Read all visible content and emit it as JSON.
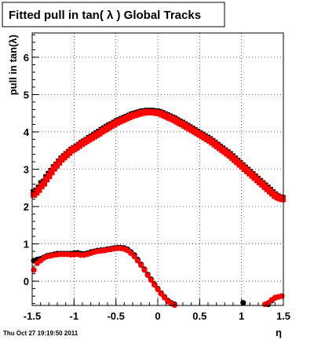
{
  "chart_data": {
    "type": "scatter",
    "title": "Fitted pull in tan( λ )  Global Tracks",
    "xlabel": "η",
    "ylabel": "pull in tan(λ)",
    "xlim": [
      -1.5,
      1.5
    ],
    "ylim": [
      -0.65,
      6.65
    ],
    "xticks": [
      -1.5,
      -1,
      -0.5,
      0,
      0.5,
      1,
      1.5
    ],
    "xtick_labels": [
      "-1.5",
      "-1",
      "-0.5",
      "0",
      "0.5",
      "1",
      "1.5"
    ],
    "yticks": [
      0,
      1,
      2,
      3,
      4,
      5,
      6
    ],
    "ytick_labels": [
      "0",
      "1",
      "2",
      "3",
      "4",
      "5",
      "6"
    ],
    "grid": true,
    "footer": "Thu Oct 27 19:19:50 2011",
    "series": [
      {
        "marker": "square",
        "color": "#000000",
        "x": [
          -1.48,
          -1.45,
          -1.42,
          -1.39,
          -1.36,
          -1.33,
          -1.3,
          -1.27,
          -1.24,
          -1.21,
          -1.18,
          -1.15,
          -1.12,
          -1.09,
          -1.06,
          -1.03,
          -1.0,
          -0.97,
          -0.94,
          -0.91,
          -0.88,
          -0.85,
          -0.82,
          -0.79,
          -0.76,
          -0.73,
          -0.7,
          -0.67,
          -0.64,
          -0.61,
          -0.58,
          -0.55,
          -0.52,
          -0.49,
          -0.46,
          -0.43,
          -0.4,
          -0.37,
          -0.34,
          -0.31,
          -0.28,
          -0.25,
          -0.22,
          -0.19,
          -0.16,
          -0.13,
          -0.1,
          -0.07,
          -0.04,
          -0.01,
          0.02,
          0.05,
          0.08,
          0.11,
          0.14,
          0.17,
          0.2,
          0.23,
          0.26,
          0.29,
          0.32,
          0.35,
          0.38,
          0.41,
          0.44,
          0.47,
          0.5,
          0.53,
          0.56,
          0.59,
          0.62,
          0.65,
          0.68,
          0.71,
          0.74,
          0.77,
          0.8,
          0.83,
          0.86,
          0.89,
          0.92,
          0.95,
          0.98,
          1.01,
          1.04,
          1.07,
          1.1,
          1.13,
          1.16,
          1.19,
          1.22,
          1.25,
          1.28,
          1.31,
          1.34,
          1.37,
          1.4,
          1.43,
          1.46,
          1.49
        ],
        "y": [
          2.38,
          2.42,
          2.5,
          2.62,
          2.66,
          2.78,
          2.87,
          2.95,
          3.05,
          3.12,
          3.2,
          3.28,
          3.34,
          3.4,
          3.46,
          3.52,
          3.56,
          3.6,
          3.65,
          3.7,
          3.74,
          3.78,
          3.83,
          3.87,
          3.91,
          3.96,
          4.0,
          4.05,
          4.09,
          4.13,
          4.17,
          4.2,
          4.24,
          4.28,
          4.31,
          4.34,
          4.37,
          4.4,
          4.43,
          4.46,
          4.48,
          4.5,
          4.52,
          4.54,
          4.55,
          4.56,
          4.56,
          4.56,
          4.55,
          4.54,
          4.53,
          4.5,
          4.47,
          4.44,
          4.41,
          4.38,
          4.35,
          4.31,
          4.27,
          4.24,
          4.2,
          4.16,
          4.12,
          4.08,
          4.04,
          4.0,
          3.96,
          3.92,
          3.88,
          3.84,
          3.8,
          3.75,
          3.7,
          3.65,
          3.6,
          3.55,
          3.5,
          3.45,
          3.4,
          3.34,
          3.28,
          3.22,
          3.16,
          3.1,
          3.04,
          2.98,
          2.92,
          2.86,
          2.8,
          2.74,
          2.68,
          2.62,
          2.56,
          2.5,
          2.44,
          2.38,
          2.32,
          2.27,
          2.24,
          2.22
        ]
      },
      {
        "marker": "square",
        "color": "#ff0000",
        "x": [
          -1.48,
          -1.45,
          -1.42,
          -1.39,
          -1.36,
          -1.33,
          -1.3,
          -1.27,
          -1.24,
          -1.21,
          -1.18,
          -1.15,
          -1.12,
          -1.09,
          -1.06,
          -1.03,
          -1.0,
          -0.97,
          -0.94,
          -0.91,
          -0.88,
          -0.85,
          -0.82,
          -0.79,
          -0.76,
          -0.73,
          -0.7,
          -0.67,
          -0.64,
          -0.61,
          -0.58,
          -0.55,
          -0.52,
          -0.49,
          -0.46,
          -0.43,
          -0.4,
          -0.37,
          -0.34,
          -0.31,
          -0.28,
          -0.25,
          -0.22,
          -0.19,
          -0.16,
          -0.13,
          -0.1,
          -0.07,
          -0.04,
          -0.01,
          0.02,
          0.05,
          0.08,
          0.11,
          0.14,
          0.17,
          0.2,
          0.23,
          0.26,
          0.29,
          0.32,
          0.35,
          0.38,
          0.41,
          0.44,
          0.47,
          0.5,
          0.53,
          0.56,
          0.59,
          0.62,
          0.65,
          0.68,
          0.71,
          0.74,
          0.77,
          0.8,
          0.83,
          0.86,
          0.89,
          0.92,
          0.95,
          0.98,
          1.01,
          1.04,
          1.07,
          1.1,
          1.13,
          1.16,
          1.19,
          1.22,
          1.25,
          1.28,
          1.31,
          1.34,
          1.37,
          1.4,
          1.43,
          1.46,
          1.49
        ],
        "y": [
          2.32,
          2.38,
          2.45,
          2.55,
          2.62,
          2.73,
          2.82,
          2.92,
          3.02,
          3.1,
          3.18,
          3.26,
          3.32,
          3.38,
          3.44,
          3.5,
          3.54,
          3.58,
          3.63,
          3.68,
          3.72,
          3.76,
          3.8,
          3.84,
          3.88,
          3.92,
          3.96,
          4.01,
          4.05,
          4.09,
          4.13,
          4.17,
          4.21,
          4.25,
          4.28,
          4.31,
          4.34,
          4.37,
          4.4,
          4.43,
          4.45,
          4.47,
          4.49,
          4.51,
          4.52,
          4.53,
          4.53,
          4.53,
          4.52,
          4.51,
          4.5,
          4.47,
          4.44,
          4.41,
          4.38,
          4.35,
          4.32,
          4.28,
          4.24,
          4.21,
          4.17,
          4.13,
          4.09,
          4.05,
          4.01,
          3.97,
          3.93,
          3.89,
          3.85,
          3.81,
          3.77,
          3.72,
          3.67,
          3.62,
          3.57,
          3.52,
          3.47,
          3.42,
          3.37,
          3.31,
          3.25,
          3.19,
          3.13,
          3.07,
          3.01,
          2.95,
          2.89,
          2.83,
          2.77,
          2.71,
          2.65,
          2.59,
          2.53,
          2.47,
          2.41,
          2.35,
          2.29,
          2.25,
          2.22,
          2.2
        ]
      },
      {
        "marker": "circle",
        "color": "#000000",
        "x": [
          -1.48,
          -1.44,
          -1.4,
          -1.36,
          -1.32,
          -1.28,
          -1.24,
          -1.2,
          -1.16,
          -1.12,
          -1.08,
          -1.04,
          -1.0,
          -0.96,
          -0.92,
          -0.88,
          -0.84,
          -0.8,
          -0.76,
          -0.72,
          -0.68,
          -0.64,
          -0.6,
          -0.56,
          -0.52,
          -0.48,
          -0.44,
          -0.4,
          -0.36,
          -0.32,
          -0.28,
          -0.24,
          -0.2,
          -0.16,
          -0.12,
          -0.08,
          -0.04,
          0.0,
          0.04,
          0.08,
          0.12,
          0.16,
          0.2,
          1.02,
          1.32,
          1.36,
          1.4,
          1.44,
          1.48
        ],
        "y": [
          0.55,
          0.58,
          0.6,
          0.64,
          0.68,
          0.7,
          0.72,
          0.74,
          0.74,
          0.74,
          0.74,
          0.74,
          0.75,
          0.76,
          0.74,
          0.73,
          0.75,
          0.78,
          0.8,
          0.82,
          0.83,
          0.84,
          0.86,
          0.87,
          0.89,
          0.9,
          0.9,
          0.89,
          0.85,
          0.78,
          0.7,
          0.58,
          0.45,
          0.32,
          0.18,
          0.05,
          -0.08,
          -0.2,
          -0.32,
          -0.42,
          -0.52,
          -0.58,
          -0.62,
          -0.58,
          -0.62,
          -0.52,
          -0.45,
          -0.42,
          -0.4
        ]
      },
      {
        "marker": "circle",
        "color": "#ff0000",
        "x": [
          -1.48,
          -1.44,
          -1.4,
          -1.36,
          -1.32,
          -1.28,
          -1.24,
          -1.2,
          -1.16,
          -1.12,
          -1.08,
          -1.04,
          -1.0,
          -0.96,
          -0.92,
          -0.88,
          -0.84,
          -0.8,
          -0.76,
          -0.72,
          -0.68,
          -0.64,
          -0.6,
          -0.56,
          -0.52,
          -0.48,
          -0.44,
          -0.4,
          -0.36,
          -0.32,
          -0.28,
          -0.24,
          -0.2,
          -0.16,
          -0.12,
          -0.08,
          -0.04,
          0.0,
          0.04,
          0.08,
          0.12,
          0.16,
          0.2,
          1.28,
          1.32,
          1.36,
          1.4,
          1.44,
          1.48
        ],
        "y": [
          0.3,
          0.48,
          0.55,
          0.62,
          0.66,
          0.68,
          0.7,
          0.71,
          0.72,
          0.72,
          0.72,
          0.71,
          0.71,
          0.72,
          0.7,
          0.7,
          0.72,
          0.75,
          0.78,
          0.8,
          0.81,
          0.82,
          0.84,
          0.85,
          0.87,
          0.88,
          0.88,
          0.86,
          0.82,
          0.75,
          0.66,
          0.55,
          0.43,
          0.3,
          0.16,
          0.03,
          -0.1,
          -0.22,
          -0.34,
          -0.44,
          -0.54,
          -0.6,
          -0.64,
          -0.62,
          -0.58,
          -0.5,
          -0.44,
          -0.42,
          -0.4
        ]
      }
    ]
  }
}
